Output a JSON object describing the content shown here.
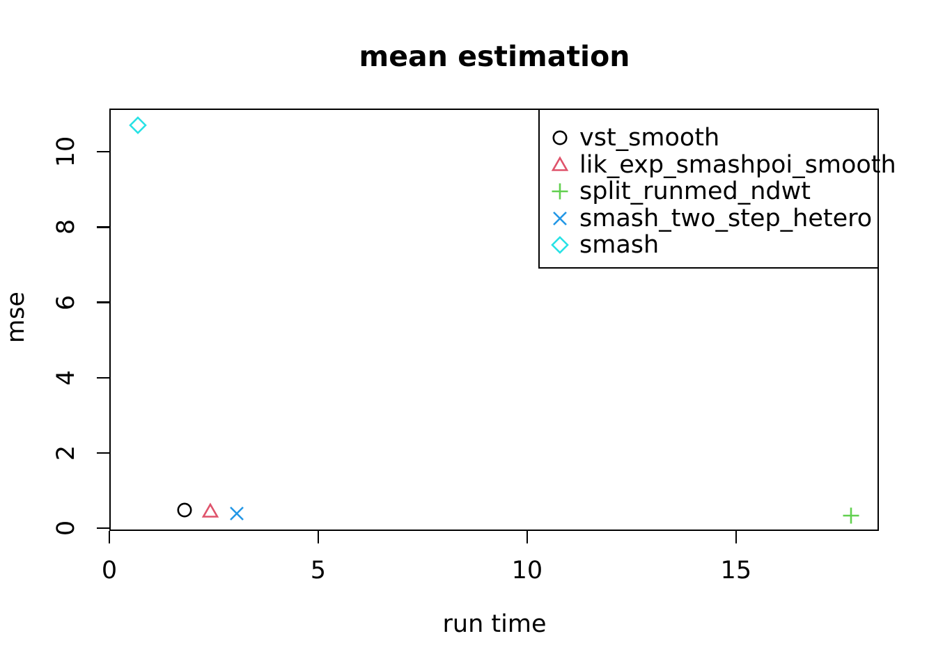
{
  "chart_data": {
    "type": "scatter",
    "title": "mean estimation",
    "xlabel": "run time",
    "ylabel": "mse",
    "xlim": [
      0,
      18.42
    ],
    "ylim": [
      -0.07,
      11.15
    ],
    "xticks": [
      0,
      5,
      10,
      15
    ],
    "yticks": [
      0,
      2,
      4,
      6,
      8,
      10
    ],
    "grid": false,
    "legend_position": "top-right",
    "axis_color": "#000000",
    "series": [
      {
        "name": "vst_smooth",
        "marker": "circle",
        "color": "#000000",
        "points": [
          [
            1.8,
            0.48
          ]
        ]
      },
      {
        "name": "lik_exp_smashpoi_smooth",
        "marker": "triangle-up",
        "color": "#DF536B",
        "points": [
          [
            2.42,
            0.44
          ]
        ]
      },
      {
        "name": "split_runmed_ndwt",
        "marker": "plus",
        "color": "#61D04F",
        "points": [
          [
            17.75,
            0.33
          ]
        ]
      },
      {
        "name": "smash_two_step_hetero",
        "marker": "x",
        "color": "#2297E6",
        "points": [
          [
            3.05,
            0.39
          ]
        ]
      },
      {
        "name": "smash",
        "marker": "diamond",
        "color": "#28E2E5",
        "points": [
          [
            0.68,
            10.7
          ]
        ]
      }
    ]
  }
}
